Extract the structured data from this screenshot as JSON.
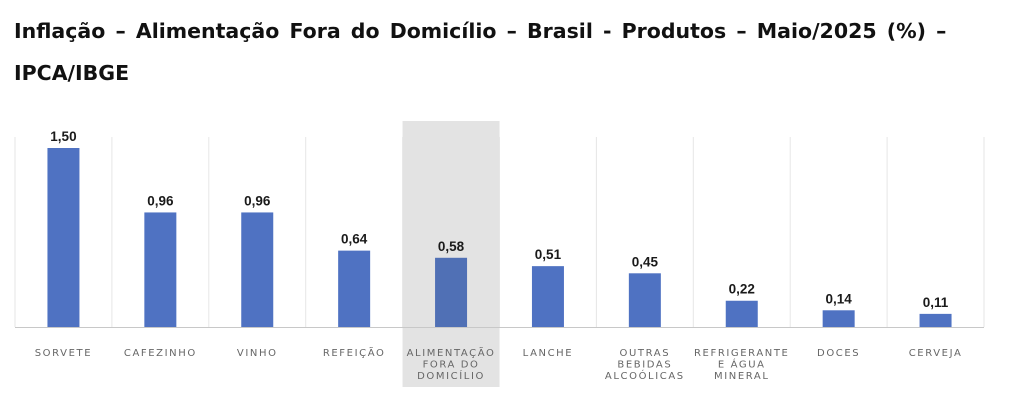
{
  "chart_data": {
    "type": "bar",
    "title": "Inflação – Alimentação Fora do Domicílio – Brasil - Produtos – Maio/2025 (%) – IPCA/IBGE",
    "categories": [
      "SORVETE",
      "CAFEZINHO",
      "VINHO",
      "REFEIÇÃO",
      "ALIMENTAÇÃO FORA DO DOMICÍLIO",
      "LANCHE",
      "OUTRAS BEBIDAS ALCOÓLICAS",
      "REFRIGERANTE E ÁGUA MINERAL",
      "DOCES",
      "CERVEJA"
    ],
    "category_lines": [
      [
        "SORVETE"
      ],
      [
        "CAFEZINHO"
      ],
      [
        "VINHO"
      ],
      [
        "REFEIÇÃO"
      ],
      [
        "ALIMENTAÇÃO",
        "FORA DO",
        "DOMICÍLIO"
      ],
      [
        "LANCHE"
      ],
      [
        "OUTRAS",
        "BEBIDAS",
        "ALCOÓLICAS"
      ],
      [
        "REFRIGERANTE",
        "E ÁGUA",
        "MINERAL"
      ],
      [
        "DOCES"
      ],
      [
        "CERVEJA"
      ]
    ],
    "values": [
      1.5,
      0.96,
      0.96,
      0.64,
      0.58,
      0.51,
      0.45,
      0.22,
      0.14,
      0.11
    ],
    "data_labels": [
      "1,50",
      "0,96",
      "0,96",
      "0,64",
      "0,58",
      "0,51",
      "0,45",
      "0,22",
      "0,14",
      "0,11"
    ],
    "highlighted_category": "ALIMENTAÇÃO FORA DO DOMICÍLIO",
    "xlabel": "",
    "ylabel": "",
    "ylim": [
      0,
      1.5
    ],
    "grid": "vertical category separators",
    "legend": "none",
    "colors": {
      "bar": "#4F72C2",
      "bar_highlight": "#5070B5",
      "highlight_band": "#E3E3E3",
      "grid": "#E6E6E6",
      "axis": "#C8C8C8"
    }
  }
}
